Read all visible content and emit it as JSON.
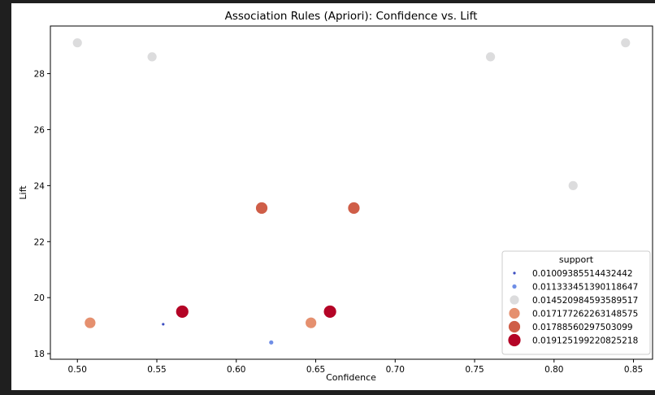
{
  "chart_data": {
    "type": "scatter",
    "title": "Association Rules (Apriori): Confidence vs. Lift",
    "xlabel": "Confidence",
    "ylabel": "Lift",
    "xlim": [
      0.483,
      0.862
    ],
    "ylim": [
      17.8,
      29.7
    ],
    "xticks": [
      0.5,
      0.55,
      0.6,
      0.65,
      0.7,
      0.75,
      0.8,
      0.85
    ],
    "xtick_labels": [
      "0.50",
      "0.55",
      "0.60",
      "0.65",
      "0.70",
      "0.75",
      "0.80",
      "0.85"
    ],
    "yticks": [
      18,
      20,
      22,
      24,
      26,
      28
    ],
    "ytick_labels": [
      "18",
      "20",
      "22",
      "24",
      "26",
      "28"
    ],
    "grid": false,
    "legend": {
      "title": "support",
      "placement": "lower-right",
      "entries": [
        {
          "label": "0.01009385514432442",
          "color": "#3b4cc0",
          "size": 1
        },
        {
          "label": "0.011333451390118647",
          "color": "#6f8ee6",
          "size": 2
        },
        {
          "label": "0.014520984593589517",
          "color": "#dcdcdd",
          "size": 3
        },
        {
          "label": "0.017177262263148575",
          "color": "#e5906f",
          "size": 4
        },
        {
          "label": "0.01788560297503099",
          "color": "#cf5e48",
          "size": 5
        },
        {
          "label": "0.019125199220825218",
          "color": "#b40426",
          "size": 6
        }
      ]
    },
    "points": [
      {
        "x": 0.5,
        "y": 29.1,
        "support": 2
      },
      {
        "x": 0.547,
        "y": 28.6,
        "support": 2
      },
      {
        "x": 0.76,
        "y": 28.6,
        "support": 2
      },
      {
        "x": 0.845,
        "y": 29.1,
        "support": 2
      },
      {
        "x": 0.812,
        "y": 24.0,
        "support": 2
      },
      {
        "x": 0.616,
        "y": 23.2,
        "support": 4
      },
      {
        "x": 0.674,
        "y": 23.2,
        "support": 4
      },
      {
        "x": 0.508,
        "y": 19.1,
        "support": 3
      },
      {
        "x": 0.647,
        "y": 19.1,
        "support": 3
      },
      {
        "x": 0.566,
        "y": 19.5,
        "support": 5
      },
      {
        "x": 0.659,
        "y": 19.5,
        "support": 5
      },
      {
        "x": 0.554,
        "y": 19.05,
        "support": 0
      },
      {
        "x": 0.622,
        "y": 18.4,
        "support": 1
      }
    ]
  }
}
